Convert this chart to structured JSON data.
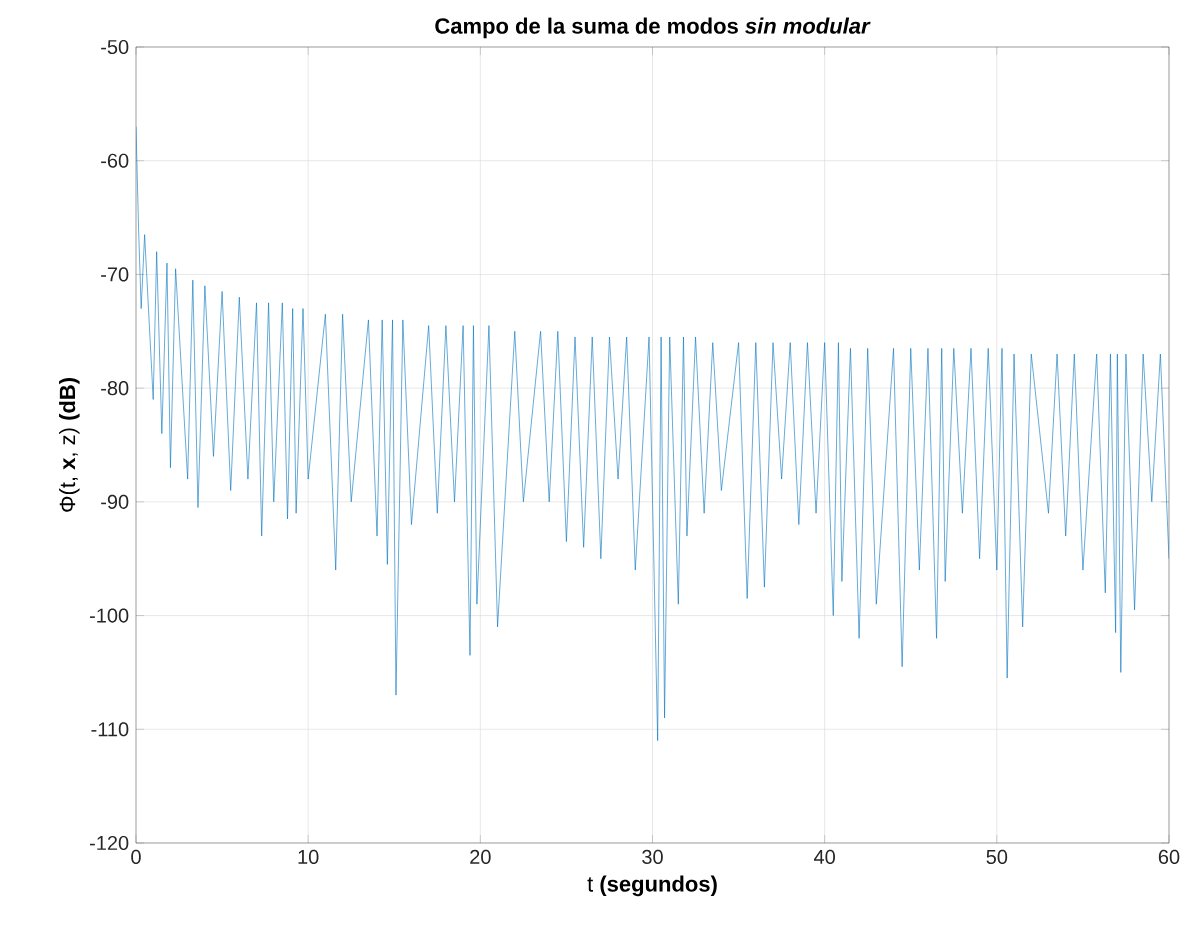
{
  "chart_data": {
    "type": "line",
    "title": "Campo de la suma de modos *sin modular*",
    "xlabel": "t **(segundos)**",
    "ylabel": "Φ(t, **x**, z) **(dB)**",
    "x": [
      0,
      0.15,
      0.3,
      0.5,
      1,
      1.2,
      1.5,
      1.8,
      2,
      2.3,
      3,
      3.3,
      3.6,
      4,
      4.5,
      5,
      5.5,
      6,
      6.5,
      7,
      7.3,
      7.7,
      8,
      8.5,
      8.8,
      9.1,
      9.3,
      9.7,
      10,
      11,
      11.6,
      12,
      12.5,
      13.5,
      14,
      14.3,
      14.6,
      14.9,
      15.1,
      15.5,
      16,
      17,
      17.5,
      18,
      18.5,
      19,
      19.4,
      19.6,
      19.8,
      20.5,
      21,
      22,
      22.5,
      23.5,
      24,
      24.5,
      25,
      25.5,
      26,
      26.5,
      27,
      27.5,
      28,
      28.5,
      29,
      29.8,
      30.3,
      30.5,
      30.7,
      31,
      31.5,
      31.8,
      32,
      32.5,
      33,
      33.5,
      34,
      35,
      35.5,
      36,
      36.5,
      37,
      37.5,
      38,
      38.5,
      39,
      39.5,
      40,
      40.5,
      40.8,
      41,
      41.5,
      42,
      42.5,
      43,
      44,
      44.5,
      45,
      45.5,
      46,
      46.5,
      46.8,
      47,
      47.5,
      48,
      48.5,
      49,
      49.5,
      50,
      50.3,
      50.6,
      51,
      51.5,
      52,
      53,
      53.5,
      54,
      54.5,
      55,
      55.8,
      56.3,
      56.6,
      56.9,
      57,
      57.2,
      57.5,
      58,
      58.5,
      59,
      59.5,
      60
    ],
    "series": [
      {
        "color": "#0072bd",
        "values": [
          -57,
          -66,
          -73,
          -66.5,
          -81,
          -68,
          -84,
          -69,
          -87,
          -69.5,
          -88,
          -70.5,
          -90.5,
          -71,
          -86,
          -71.5,
          -89,
          -72,
          -88,
          -72.5,
          -93,
          -72.5,
          -90,
          -72.5,
          -91.5,
          -73,
          -91,
          -73,
          -88,
          -73.5,
          -96,
          -73.5,
          -90,
          -74,
          -93,
          -74,
          -95.5,
          -74,
          -107,
          -74,
          -92,
          -74.5,
          -91,
          -74.5,
          -90,
          -74.5,
          -103.5,
          -74.5,
          -99,
          -74.5,
          -101,
          -75,
          -90,
          -75,
          -90,
          -75,
          -93.5,
          -75.5,
          -94,
          -75.5,
          -95,
          -75.5,
          -88,
          -75.5,
          -96,
          -75.5,
          -111,
          -75.5,
          -109,
          -75.5,
          -99,
          -75.5,
          -93,
          -75.5,
          -91,
          -76,
          -89,
          -76,
          -98.5,
          -76,
          -97.5,
          -76,
          -88,
          -76,
          -92,
          -76,
          -91,
          -76,
          -100,
          -76,
          -97,
          -76.5,
          -102,
          -76.5,
          -99,
          -76.5,
          -104.5,
          -76.5,
          -96,
          -76.5,
          -102,
          -76.5,
          -97,
          -76.5,
          -91,
          -76.5,
          -95,
          -76.5,
          -96,
          -76.5,
          -105.5,
          -77,
          -101,
          -77,
          -91,
          -77,
          -93,
          -77,
          -96,
          -77,
          -98,
          -77,
          -101.5,
          -77,
          -105,
          -77,
          -99.5,
          -77,
          -90,
          -77,
          -95
        ]
      }
    ],
    "xlim": [
      0,
      60
    ],
    "ylim": [
      -120,
      -50
    ],
    "xticks": [
      0,
      10,
      20,
      30,
      40,
      50,
      60
    ],
    "yticks": [
      -120,
      -110,
      -100,
      -90,
      -80,
      -70,
      -60,
      -50
    ],
    "grid": true,
    "marker": "none",
    "line_style": "solid"
  }
}
